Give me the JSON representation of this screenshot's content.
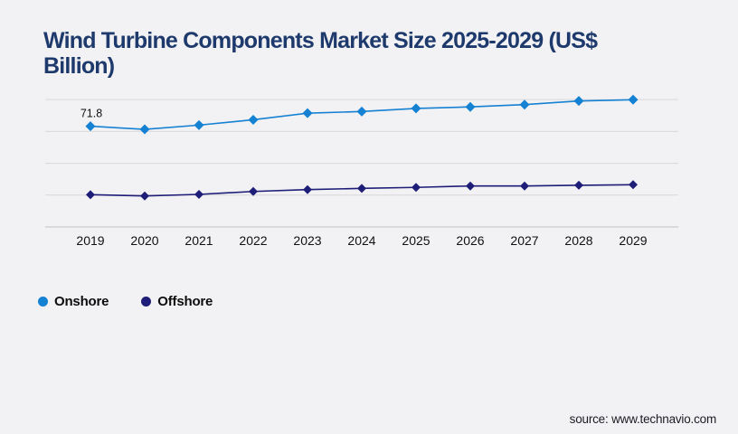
{
  "title": "Wind Turbine Components Market Size 2025-2029 (US$\nBillion)",
  "source_text": "source: www.technavio.com",
  "colors": {
    "title": "#1e3a6d",
    "onshore": "#1581d3",
    "offshore": "#1e1d78",
    "gridline": "#d8d8da",
    "axis_line": "#c2c2c6",
    "background": "#f2f1f3",
    "label_text": "#111111",
    "source_text": "#1c1c24"
  },
  "legend": {
    "items": [
      {
        "label": "Onshore",
        "color": "#1581d3"
      },
      {
        "label": "Offshore",
        "color": "#1e1d78"
      }
    ]
  },
  "annotation": {
    "text": "71.8",
    "series": "Onshore",
    "year": "2019"
  },
  "chart_data": {
    "type": "line",
    "title": "Wind Turbine Components Market Size 2025-2029 (US$ Billion)",
    "x": [
      "2019",
      "2020",
      "2021",
      "2022",
      "2023",
      "2024",
      "2025",
      "2026",
      "2027",
      "2028",
      "2029"
    ],
    "series": [
      {
        "name": "Onshore",
        "color": "#1581d3",
        "marker": "diamond",
        "values": [
          71.8,
          69.6,
          72.6,
          76.4,
          81.1,
          82.3,
          84.5,
          85.6,
          87.2,
          89.8,
          90.7
        ],
        "point_label": {
          "year": "2019",
          "text": "71.8"
        }
      },
      {
        "name": "Offshore",
        "color": "#1e1d78",
        "marker": "diamond",
        "values": [
          23.0,
          22.1,
          23.2,
          25.3,
          26.6,
          27.5,
          28.2,
          29.2,
          29.2,
          29.7,
          30.1
        ]
      }
    ],
    "ylabel": "",
    "xlabel": "",
    "ylim": [
      0,
      107
    ],
    "gridline_values": [
      0,
      22.7,
      45.4,
      68.1,
      90.8
    ],
    "grid": "horizontal",
    "legend_position": "bottom-left",
    "note": "Values other than labeled 71.8 are estimated from plot geometry; no y-axis tick labels are shown in the chart."
  }
}
